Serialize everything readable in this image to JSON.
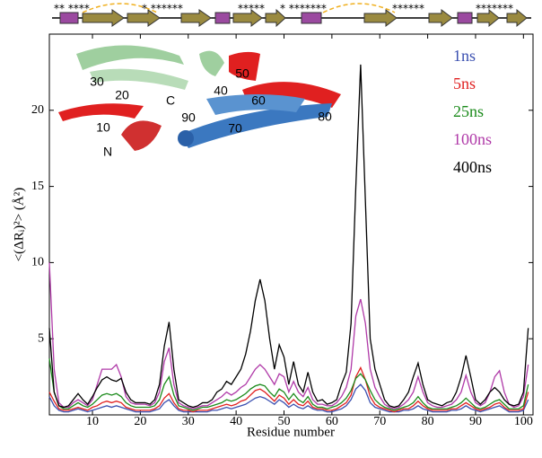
{
  "chart_data": {
    "type": "line",
    "xlabel": "Residue number",
    "ylabel": "<(ΔRᵢ)²> (Å²)",
    "x": [
      1,
      2,
      3,
      4,
      5,
      6,
      7,
      8,
      9,
      10,
      11,
      12,
      13,
      14,
      15,
      16,
      17,
      18,
      19,
      20,
      21,
      22,
      23,
      24,
      25,
      26,
      27,
      28,
      29,
      30,
      31,
      32,
      33,
      34,
      35,
      36,
      37,
      38,
      39,
      40,
      41,
      42,
      43,
      44,
      45,
      46,
      47,
      48,
      49,
      50,
      51,
      52,
      53,
      54,
      55,
      56,
      57,
      58,
      59,
      60,
      61,
      62,
      63,
      64,
      65,
      66,
      67,
      68,
      69,
      70,
      71,
      72,
      73,
      74,
      75,
      76,
      77,
      78,
      79,
      80,
      81,
      82,
      83,
      84,
      85,
      86,
      87,
      88,
      89,
      90,
      91,
      92,
      93,
      94,
      95,
      96,
      97,
      98,
      99,
      100,
      101
    ],
    "series": [
      {
        "name": "1ns",
        "color": "#3a4fb0",
        "values": [
          1.2,
          0.6,
          0.3,
          0.2,
          0.2,
          0.3,
          0.4,
          0.3,
          0.2,
          0.3,
          0.4,
          0.5,
          0.6,
          0.5,
          0.6,
          0.5,
          0.4,
          0.3,
          0.2,
          0.2,
          0.2,
          0.2,
          0.3,
          0.4,
          0.8,
          1.0,
          0.6,
          0.3,
          0.2,
          0.2,
          0.2,
          0.2,
          0.2,
          0.2,
          0.3,
          0.3,
          0.4,
          0.5,
          0.4,
          0.5,
          0.6,
          0.7,
          0.9,
          1.1,
          1.2,
          1.1,
          0.9,
          0.7,
          1.0,
          0.8,
          0.5,
          0.7,
          0.5,
          0.4,
          0.6,
          0.4,
          0.3,
          0.3,
          0.2,
          0.2,
          0.3,
          0.4,
          0.6,
          1.0,
          1.7,
          2.0,
          1.6,
          0.8,
          0.5,
          0.4,
          0.3,
          0.2,
          0.2,
          0.2,
          0.3,
          0.3,
          0.4,
          0.6,
          0.4,
          0.3,
          0.2,
          0.2,
          0.2,
          0.2,
          0.3,
          0.3,
          0.4,
          0.6,
          0.4,
          0.3,
          0.2,
          0.3,
          0.4,
          0.5,
          0.6,
          0.4,
          0.2,
          0.2,
          0.2,
          0.3,
          1.0
        ]
      },
      {
        "name": "5ns",
        "color": "#e02020",
        "values": [
          1.5,
          0.9,
          0.4,
          0.3,
          0.3,
          0.4,
          0.5,
          0.4,
          0.3,
          0.5,
          0.6,
          0.8,
          0.9,
          0.8,
          0.9,
          0.8,
          0.5,
          0.4,
          0.3,
          0.3,
          0.3,
          0.3,
          0.4,
          0.6,
          1.1,
          1.4,
          0.8,
          0.4,
          0.3,
          0.3,
          0.2,
          0.3,
          0.3,
          0.3,
          0.4,
          0.5,
          0.6,
          0.7,
          0.6,
          0.7,
          0.9,
          1.0,
          1.3,
          1.6,
          1.7,
          1.5,
          1.2,
          0.9,
          1.3,
          1.1,
          0.7,
          1.0,
          0.7,
          0.6,
          0.9,
          0.5,
          0.4,
          0.4,
          0.3,
          0.3,
          0.4,
          0.6,
          0.8,
          1.3,
          2.5,
          3.1,
          2.3,
          1.2,
          0.7,
          0.5,
          0.4,
          0.3,
          0.2,
          0.3,
          0.4,
          0.4,
          0.6,
          0.9,
          0.6,
          0.4,
          0.3,
          0.3,
          0.3,
          0.3,
          0.4,
          0.4,
          0.6,
          0.8,
          0.6,
          0.4,
          0.3,
          0.4,
          0.5,
          0.7,
          0.8,
          0.5,
          0.3,
          0.3,
          0.3,
          0.4,
          1.5
        ]
      },
      {
        "name": "25ns",
        "color": "#1a8a1a",
        "values": [
          3.7,
          1.5,
          0.6,
          0.4,
          0.4,
          0.6,
          0.8,
          0.6,
          0.5,
          0.7,
          1.0,
          1.3,
          1.4,
          1.3,
          1.4,
          1.2,
          0.8,
          0.6,
          0.5,
          0.5,
          0.5,
          0.5,
          0.6,
          1.0,
          2.0,
          2.5,
          1.3,
          0.6,
          0.5,
          0.4,
          0.3,
          0.4,
          0.5,
          0.5,
          0.6,
          0.7,
          0.8,
          1.0,
          0.9,
          1.0,
          1.2,
          1.4,
          1.7,
          1.9,
          2.0,
          1.9,
          1.5,
          1.2,
          1.7,
          1.5,
          1.0,
          1.4,
          1.0,
          0.8,
          1.2,
          0.7,
          0.5,
          0.5,
          0.4,
          0.5,
          0.6,
          0.8,
          1.1,
          1.6,
          2.4,
          2.7,
          2.3,
          1.6,
          1.0,
          0.7,
          0.5,
          0.4,
          0.3,
          0.4,
          0.5,
          0.6,
          0.8,
          1.2,
          0.8,
          0.5,
          0.4,
          0.4,
          0.4,
          0.4,
          0.5,
          0.6,
          0.8,
          1.1,
          0.8,
          0.5,
          0.4,
          0.5,
          0.7,
          0.9,
          1.0,
          0.7,
          0.4,
          0.4,
          0.4,
          0.6,
          2.0
        ]
      },
      {
        "name": "100ns",
        "color": "#b03aa8",
        "values": [
          10.0,
          3.0,
          0.8,
          0.5,
          0.5,
          0.8,
          1.0,
          0.8,
          0.6,
          1.0,
          2.0,
          3.0,
          3.0,
          3.0,
          3.3,
          2.5,
          1.2,
          0.8,
          0.7,
          0.7,
          0.7,
          0.6,
          0.8,
          1.5,
          3.5,
          4.4,
          2.0,
          0.8,
          0.6,
          0.5,
          0.4,
          0.5,
          0.6,
          0.6,
          0.8,
          1.0,
          1.2,
          1.5,
          1.3,
          1.5,
          1.8,
          2.0,
          2.5,
          3.0,
          3.3,
          3.0,
          2.5,
          2.0,
          2.7,
          2.5,
          1.5,
          2.2,
          1.5,
          1.2,
          1.8,
          1.0,
          0.7,
          0.7,
          0.6,
          0.6,
          0.8,
          1.2,
          1.8,
          3.0,
          6.5,
          7.6,
          6.0,
          3.0,
          1.8,
          1.2,
          0.7,
          0.5,
          0.4,
          0.5,
          0.7,
          1.0,
          1.5,
          2.5,
          1.5,
          0.8,
          0.6,
          0.5,
          0.5,
          0.6,
          0.7,
          1.0,
          1.5,
          2.6,
          1.5,
          0.8,
          0.6,
          0.8,
          1.5,
          2.5,
          2.9,
          1.5,
          0.7,
          0.5,
          0.6,
          1.2,
          3.3
        ]
      },
      {
        "name": "400ns",
        "color": "#000000",
        "values": [
          5.7,
          1.5,
          0.6,
          0.5,
          0.6,
          1.0,
          1.4,
          1.0,
          0.7,
          1.2,
          1.8,
          2.3,
          2.5,
          2.3,
          2.2,
          2.4,
          1.5,
          1.0,
          0.8,
          0.8,
          0.8,
          0.7,
          1.0,
          2.0,
          4.5,
          6.1,
          3.0,
          1.0,
          0.8,
          0.6,
          0.5,
          0.6,
          0.8,
          0.8,
          1.0,
          1.5,
          1.7,
          2.2,
          2.0,
          2.5,
          3.0,
          4.0,
          5.5,
          7.5,
          8.9,
          7.5,
          5.0,
          3.0,
          4.6,
          3.8,
          2.0,
          3.5,
          2.0,
          1.5,
          2.8,
          1.5,
          0.9,
          1.0,
          0.7,
          0.8,
          1.0,
          2.0,
          2.8,
          6.0,
          15.0,
          23.0,
          14.0,
          5.0,
          3.0,
          2.0,
          1.0,
          0.6,
          0.5,
          0.6,
          1.0,
          1.5,
          2.5,
          3.4,
          2.0,
          1.0,
          0.8,
          0.7,
          0.6,
          0.8,
          0.9,
          1.5,
          2.5,
          3.9,
          2.5,
          1.0,
          0.7,
          1.0,
          1.5,
          1.8,
          1.5,
          1.0,
          0.7,
          0.6,
          0.7,
          1.5,
          5.7
        ]
      }
    ],
    "xlim": [
      1,
      102
    ],
    "xticks": [
      10,
      20,
      30,
      40,
      50,
      60,
      70,
      80,
      90,
      100
    ],
    "ylim": [
      0,
      25
    ],
    "yticks": [
      5,
      10,
      15,
      20
    ],
    "legend": "top-right",
    "annotations": [
      "** ****",
      "* ******",
      "*****",
      "* *******",
      "******",
      "*******"
    ],
    "inset_labels": [
      "30",
      "20",
      "C",
      "10",
      "N",
      "90",
      "40",
      "50",
      "60",
      "70",
      "80"
    ]
  }
}
